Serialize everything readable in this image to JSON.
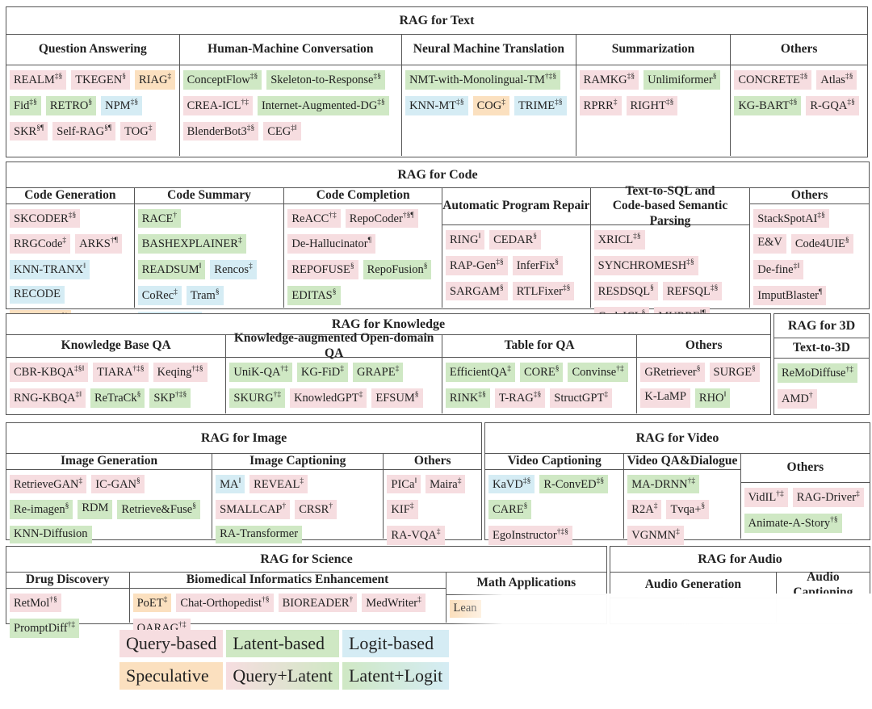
{
  "sections": [
    {
      "title": "RAG for Text",
      "columns": [
        {
          "title": "Question Answering",
          "items": [
            {
              "name": "REALM",
              "sup": "‡§",
              "color": "#f6dde0"
            },
            {
              "name": "TKEGEN",
              "sup": "§",
              "color": "#f6dde0"
            },
            {
              "name": "RIAG",
              "sup": "‡",
              "color": "#fbe0bf"
            },
            {
              "name": "Fid",
              "sup": "‡§",
              "color": "#cfe8c4"
            },
            {
              "name": "RETRO",
              "sup": "§",
              "color": "#cfe8c4"
            },
            {
              "name": "NPM",
              "sup": "‡§",
              "color": "#d5ecf4"
            },
            {
              "name": "SKR",
              "sup": "§¶",
              "color": "#f6dde0"
            },
            {
              "name": "Self-RAG",
              "sup": "§¶",
              "color": "#f6dde0"
            },
            {
              "name": "TOG",
              "sup": "‡",
              "color": "#f6dde0"
            }
          ]
        },
        {
          "title": "Human-Machine Conversation",
          "items": [
            {
              "name": "ConceptFlow",
              "sup": "‡§",
              "color": "#cfe8c4"
            },
            {
              "name": "Skeleton-to-Response",
              "sup": "‡§",
              "color": "#cfe8c4"
            },
            {
              "name": "CREA-ICL",
              "sup": "†‡",
              "color": "#f6dde0"
            },
            {
              "name": "Internet-Augmented-DG",
              "sup": "‡§",
              "color": "#cfe8c4"
            },
            {
              "name": "BlenderBot3",
              "sup": "‡§",
              "color": "#f6dde0"
            },
            {
              "name": "CEG",
              "sup": "‡‖",
              "color": "#f6dde0"
            }
          ]
        },
        {
          "title": "Neural Machine Translation",
          "items": [
            {
              "name": "NMT-with-Monolingual-TM",
              "sup": "†‡§",
              "color": "#cfe8c4"
            },
            {
              "name": "KNN-MT",
              "sup": "‡§",
              "color": "#d5ecf4"
            },
            {
              "name": "COG",
              "sup": "‡",
              "color": "#fbe0bf"
            },
            {
              "name": "TRIME",
              "sup": "‡§",
              "color": "#d5ecf4"
            }
          ]
        },
        {
          "title": "Summarization",
          "items": [
            {
              "name": "RAMKG",
              "sup": "‡§",
              "color": "#f6dde0"
            },
            {
              "name": "Unlimiformer",
              "sup": "§",
              "color": "#cfe8c4"
            },
            {
              "name": "RPRR",
              "sup": "‡",
              "color": "#f6dde0"
            },
            {
              "name": "RIGHT",
              "sup": "‡§",
              "color": "#f6dde0"
            }
          ]
        },
        {
          "title": "Others",
          "items": [
            {
              "name": "CONCRETE",
              "sup": "‡§",
              "color": "#f6dde0"
            },
            {
              "name": "Atlas",
              "sup": "‡§",
              "color": "#f6dde0"
            },
            {
              "name": "KG-BART",
              "sup": "‡§",
              "color": "#cfe8c4"
            },
            {
              "name": "R-GQA",
              "sup": "‡§",
              "color": "#f6dde0"
            }
          ]
        }
      ]
    },
    {
      "title": "RAG for Code",
      "columns": [
        {
          "title": "Code Generation",
          "items": [
            {
              "name": "SKCODER",
              "sup": "‡§",
              "color": "#f6dde0"
            },
            {
              "name": "RRGCode",
              "sup": "‡",
              "color": "#f6dde0"
            },
            {
              "name": "ARKS",
              "sup": "†¶",
              "color": "#f6dde0"
            },
            {
              "name": "KNN-TRANX",
              "sup": "‖",
              "color": "#d5ecf4"
            },
            {
              "name": "RECODE",
              "sup": "",
              "color": "#d5ecf4"
            },
            {
              "name": "Toolcoder",
              "sup": "§‖",
              "color": "#fbe0bf"
            }
          ]
        },
        {
          "title": "Code Summary",
          "items": [
            {
              "name": "RACE",
              "sup": "†",
              "color": "#cfe8c4"
            },
            {
              "name": "BASHEXPLAINER",
              "sup": "‡",
              "color": "#cfe8c4"
            },
            {
              "name": "READSUM",
              "sup": "‖",
              "color": "#cfe8c4"
            },
            {
              "name": "Rencos",
              "sup": "‡",
              "color": "#d5ecf4"
            },
            {
              "name": "CoRec",
              "sup": "‡",
              "color": "#d5ecf4"
            },
            {
              "name": "Tram",
              "sup": "§",
              "color": "#d5ecf4"
            },
            {
              "name": "EDITSUM",
              "sup": "‡",
              "color": "#d5ecf4"
            }
          ]
        },
        {
          "title": "Code Completion",
          "items": [
            {
              "name": "ReACC",
              "sup": "†‡",
              "color": "#f6dde0"
            },
            {
              "name": "RepoCoder",
              "sup": "†§¶",
              "color": "#f6dde0"
            },
            {
              "name": "De-Hallucinator",
              "sup": "¶",
              "color": "#f6dde0"
            },
            {
              "name": "REPOFUSE",
              "sup": "§",
              "color": "#f6dde0"
            },
            {
              "name": "RepoFusion",
              "sup": "§",
              "color": "#cfe8c4"
            },
            {
              "name": "EDITAS",
              "sup": "§",
              "color": "#cfe8c4"
            }
          ]
        },
        {
          "title": "Automatic Program Repair",
          "items": [
            {
              "name": "RING",
              "sup": "‖",
              "color": "#f6dde0"
            },
            {
              "name": "CEDAR",
              "sup": "§",
              "color": "#f6dde0"
            },
            {
              "name": "RAP-Gen",
              "sup": "‡§",
              "color": "#f6dde0"
            },
            {
              "name": "InferFix",
              "sup": "§",
              "color": "#f6dde0"
            },
            {
              "name": "SARGAM",
              "sup": "§",
              "color": "#f6dde0"
            },
            {
              "name": "RTLFixer",
              "sup": "‡§",
              "color": "#f6dde0"
            }
          ]
        },
        {
          "title": "Text-to-SQL and\nCode-based Semantic Parsing",
          "items": [
            {
              "name": "XRICL",
              "sup": "‡§",
              "color": "#f6dde0"
            },
            {
              "name": "SYNCHROMESH",
              "sup": "‡§",
              "color": "#f6dde0"
            },
            {
              "name": "RESDSQL",
              "sup": "§",
              "color": "#f6dde0"
            },
            {
              "name": "REFSQL",
              "sup": "‡§",
              "color": "#f6dde0"
            },
            {
              "name": "CodeICL",
              "sup": "§",
              "color": "#f6dde0"
            },
            {
              "name": "MURRE",
              "sup": "‖¶",
              "color": "#f6dde0"
            }
          ]
        },
        {
          "title": "Others",
          "items": [
            {
              "name": "StackSpotAI",
              "sup": "‡§",
              "color": "#f6dde0"
            },
            {
              "name": "E&V",
              "sup": "",
              "color": "#f6dde0"
            },
            {
              "name": "Code4UIE",
              "sup": "§",
              "color": "#f6dde0"
            },
            {
              "name": "De-fine",
              "sup": "‡‖",
              "color": "#f6dde0"
            },
            {
              "name": "ImputBlaster",
              "sup": "¶",
              "color": "#f6dde0"
            }
          ]
        }
      ]
    },
    {
      "title": "RAG for Knowledge",
      "columns": [
        {
          "title": "Knowledge Base QA",
          "items": [
            {
              "name": "CBR-KBQA",
              "sup": "‡§‖",
              "color": "#f6dde0"
            },
            {
              "name": "TIARA",
              "sup": "†‡§",
              "color": "#f6dde0"
            },
            {
              "name": "Keqing",
              "sup": "†‡§",
              "color": "#f6dde0"
            },
            {
              "name": "RNG-KBQA",
              "sup": "‡‖",
              "color": "#f6dde0"
            },
            {
              "name": "ReTraCk",
              "sup": "§",
              "color": "#cfe8c4"
            },
            {
              "name": "SKP",
              "sup": "†‡§",
              "color": "#cfe8c4"
            }
          ]
        },
        {
          "title": "Knowledge-augmented Open-domain QA",
          "items": [
            {
              "name": "UniK-QA",
              "sup": "†‡",
              "color": "#cfe8c4"
            },
            {
              "name": "KG-FiD",
              "sup": "‡",
              "color": "#cfe8c4"
            },
            {
              "name": "GRAPE",
              "sup": "‡",
              "color": "#cfe8c4"
            },
            {
              "name": "SKURG",
              "sup": "†‡",
              "color": "#cfe8c4"
            },
            {
              "name": "KnowledGPT",
              "sup": "‡",
              "color": "#f6dde0"
            },
            {
              "name": "EFSUM",
              "sup": "§",
              "color": "#f6dde0"
            }
          ]
        },
        {
          "title": "Table for QA",
          "items": [
            {
              "name": "EfficientQA",
              "sup": "‡",
              "color": "#cfe8c4"
            },
            {
              "name": "CORE",
              "sup": "§",
              "color": "#cfe8c4"
            },
            {
              "name": "Convinse",
              "sup": "†‡",
              "color": "#cfe8c4"
            },
            {
              "name": "RINK",
              "sup": "‡§",
              "color": "#cfe8c4"
            },
            {
              "name": "T-RAG",
              "sup": "‡§",
              "color": "#f6dde0"
            },
            {
              "name": "StructGPT",
              "sup": "‡",
              "color": "#f6dde0"
            }
          ]
        },
        {
          "title": "Others",
          "items": [
            {
              "name": "GRetriever",
              "sup": "§",
              "color": "#f6dde0"
            },
            {
              "name": "SURGE",
              "sup": "§",
              "color": "#f6dde0"
            },
            {
              "name": "K-LaMP",
              "sup": "",
              "color": "#f6dde0"
            },
            {
              "name": "RHO",
              "sup": "‖",
              "color": "#cfe8c4"
            }
          ]
        }
      ]
    },
    {
      "title": "RAG for 3D",
      "columns": [
        {
          "title": "Text-to-3D",
          "items": [
            {
              "name": "ReMoDiffuse",
              "sup": "†‡",
              "color": "#cfe8c4"
            },
            {
              "name": "AMD",
              "sup": "†",
              "color": "#f6dde0"
            }
          ]
        }
      ]
    },
    {
      "title": "RAG for Image",
      "columns": [
        {
          "title": "Image Generation",
          "items": [
            {
              "name": "RetrieveGAN",
              "sup": "‡",
              "color": "#f6dde0"
            },
            {
              "name": "IC-GAN",
              "sup": "§",
              "color": "#f6dde0"
            },
            {
              "name": "Re-imagen",
              "sup": "§",
              "color": "#cfe8c4"
            },
            {
              "name": "RDM",
              "sup": "",
              "color": "#cfe8c4"
            },
            {
              "name": "Retrieve&Fuse",
              "sup": "§",
              "color": "#cfe8c4"
            },
            {
              "name": "KNN-Diffusion",
              "sup": "",
              "color": "#cfe8c4"
            }
          ]
        },
        {
          "title": "Image Captioning",
          "items": [
            {
              "name": "MA",
              "sup": "‖",
              "color": "#d5ecf4"
            },
            {
              "name": "REVEAL",
              "sup": "‡",
              "color": "#f6dde0"
            },
            {
              "name": "SMALLCAP",
              "sup": "†",
              "color": "#f6dde0"
            },
            {
              "name": "CRSR",
              "sup": "†",
              "color": "#f6dde0"
            },
            {
              "name": "RA-Transformer",
              "sup": "",
              "color": "#cfe8c4"
            }
          ]
        },
        {
          "title": "Others",
          "items": [
            {
              "name": "PICa",
              "sup": "‖",
              "color": "#f6dde0"
            },
            {
              "name": "Maira",
              "sup": "‡",
              "color": "#f6dde0"
            },
            {
              "name": "KIF",
              "sup": "‡",
              "color": "#f6dde0"
            },
            {
              "name": "RA-VQA",
              "sup": "‡",
              "color": "#f6dde0"
            }
          ]
        }
      ]
    },
    {
      "title": "RAG for Video",
      "columns": [
        {
          "title": "Video Captioning",
          "items": [
            {
              "name": "KaVD",
              "sup": "‡§",
              "color": "#d5ecf4"
            },
            {
              "name": "R-ConvED",
              "sup": "‡§",
              "color": "#cfe8c4"
            },
            {
              "name": "CARE",
              "sup": "§",
              "color": "#cfe8c4"
            },
            {
              "name": "EgoInstructor",
              "sup": "†‡§",
              "color": "#f6dde0"
            }
          ]
        },
        {
          "title": "Video QA&Dialogue",
          "items": [
            {
              "name": "MA-DRNN",
              "sup": "†‡",
              "color": "#cfe8c4"
            },
            {
              "name": "R2A",
              "sup": "‡",
              "color": "#f6dde0"
            },
            {
              "name": "Tvqa+",
              "sup": "§",
              "color": "#f6dde0"
            },
            {
              "name": "VGNMN",
              "sup": "‡",
              "color": "#f6dde0"
            }
          ]
        },
        {
          "title": "Others",
          "items": [
            {
              "name": "VidIL",
              "sup": "†‡",
              "color": "#f6dde0"
            },
            {
              "name": "RAG-Driver",
              "sup": "‡",
              "color": "#f6dde0"
            },
            {
              "name": "Animate-A-Story",
              "sup": "†§",
              "color": "#cfe8c4"
            }
          ]
        }
      ]
    },
    {
      "title": "RAG for Science",
      "columns": [
        {
          "title": "Drug Discovery",
          "items": [
            {
              "name": "RetMol",
              "sup": "†§",
              "color": "#f6dde0"
            },
            {
              "name": "PromptDiff",
              "sup": "†‡",
              "color": "#cfe8c4"
            }
          ]
        },
        {
          "title": "Biomedical Informatics Enhancement",
          "items": [
            {
              "name": "PoET",
              "sup": "‡",
              "color": "#fbe0bf"
            },
            {
              "name": "Chat-Orthopedist",
              "sup": "†§",
              "color": "#f6dde0"
            },
            {
              "name": "BIOREADER",
              "sup": "†",
              "color": "#f6dde0"
            },
            {
              "name": "MedWriter",
              "sup": "‡",
              "color": "#f6dde0"
            },
            {
              "name": "QARAG",
              "sup": "†‡",
              "color": "#f6dde0"
            }
          ]
        },
        {
          "title": "Math Applications",
          "items": [
            {
              "name": "Lean",
              "sup": "",
              "color": "#fbe0bf"
            }
          ]
        }
      ]
    },
    {
      "title": "RAG for Audio",
      "columns": [
        {
          "title": "Audio Generation",
          "items": []
        },
        {
          "title": "Audio Captioning",
          "items": []
        }
      ]
    }
  ],
  "legend": [
    {
      "name": "Query-based",
      "colors": [
        "#f6dde0"
      ]
    },
    {
      "name": "Latent-based",
      "colors": [
        "#cfe8c4"
      ]
    },
    {
      "name": "Logit-based",
      "colors": [
        "#d5ecf4"
      ]
    },
    {
      "name": "Speculative",
      "colors": [
        "#fbe0bf"
      ]
    },
    {
      "name": "Query+Latent",
      "colors": [
        "#f6dde0",
        "#cfe8c4"
      ]
    },
    {
      "name": "Latent+Logit",
      "colors": [
        "#cfe8c4",
        "#d5ecf4"
      ]
    }
  ]
}
